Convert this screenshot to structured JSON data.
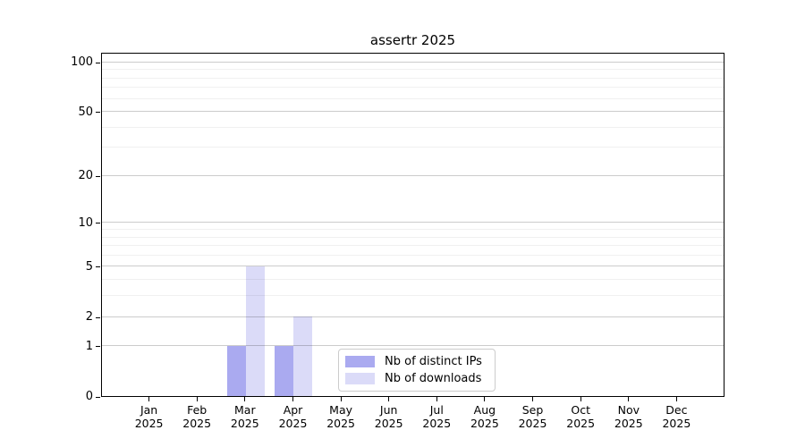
{
  "chart_data": {
    "type": "bar",
    "title": "assertr 2025",
    "categories": [
      "Jan 2025",
      "Feb 2025",
      "Mar 2025",
      "Apr 2025",
      "May 2025",
      "Jun 2025",
      "Jul 2025",
      "Aug 2025",
      "Sep 2025",
      "Oct 2025",
      "Nov 2025",
      "Dec 2025"
    ],
    "series": [
      {
        "name": "Nb of distinct IPs",
        "color": "#aaaaf0",
        "values": [
          0,
          0,
          1,
          1,
          0,
          0,
          0,
          0,
          0,
          0,
          0,
          0
        ]
      },
      {
        "name": "Nb of downloads",
        "color": "#dbdbf8",
        "values": [
          0,
          0,
          5,
          2,
          0,
          0,
          0,
          0,
          0,
          0,
          0,
          0
        ]
      }
    ],
    "xlabel": "",
    "ylabel": "",
    "yscale": "log1p",
    "ylim": [
      0,
      115
    ],
    "yticks": [
      0,
      1,
      2,
      5,
      10,
      20,
      50,
      100
    ],
    "minor_yticks": [
      3,
      4,
      6,
      7,
      8,
      9,
      30,
      40,
      60,
      70,
      80,
      90
    ],
    "grid": "on",
    "grid_above_bars": true,
    "legend_position": "lower-center-inside",
    "colors": {
      "distinct_ips": "#aaaaf0",
      "downloads": "#dbdbf8",
      "spine": "#000000",
      "grid_major": "#cccccc",
      "grid_minor": "#f0f0f0",
      "background": "#ffffff"
    }
  }
}
